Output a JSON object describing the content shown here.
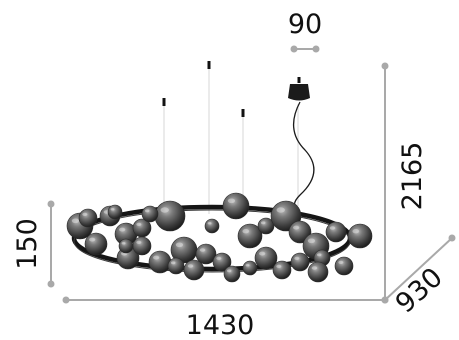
{
  "dimensions": {
    "top_depth": "90",
    "height_total": "2165",
    "height_lamp": "150",
    "width": "1430",
    "depth": "930"
  },
  "colors": {
    "dimension_line": "#a9a9a9",
    "text": "#111111",
    "globe_dark": "#2a2a2a",
    "globe_light": "#8d8d8d",
    "ring": "#151515",
    "suspension_wire": "#d7d7d7"
  }
}
